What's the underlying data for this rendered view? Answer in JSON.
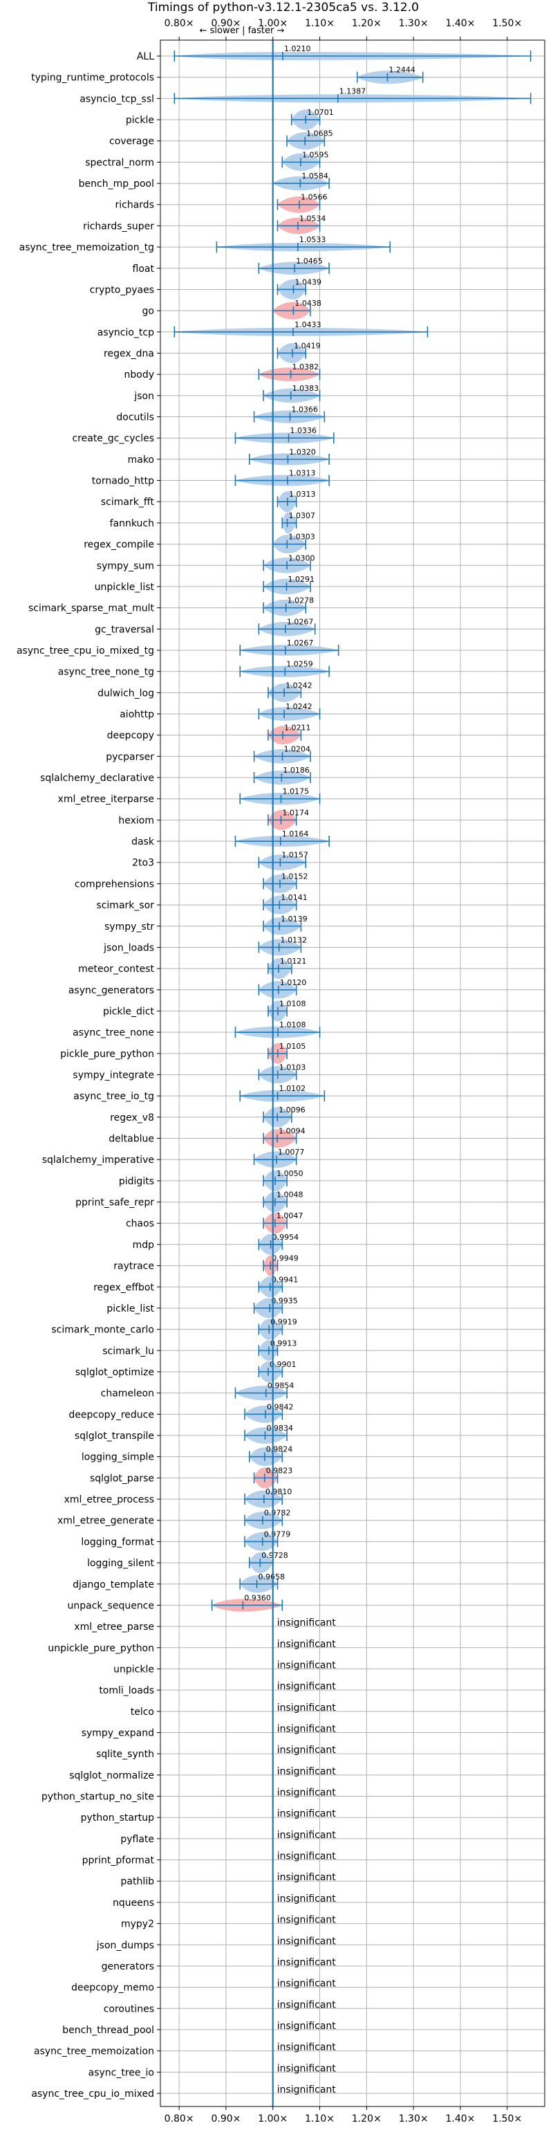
{
  "chart_data": {
    "type": "violin",
    "title": "Timings of python-v3.12.1-2305ca5 vs. 3.12.0",
    "subtitle": "← slower | faster →",
    "xlim": [
      0.76,
      1.58
    ],
    "x_ticks": [
      0.8,
      0.9,
      1.0,
      1.1,
      1.2,
      1.3,
      1.4,
      1.5
    ],
    "x_tick_labels": [
      "0.80×",
      "0.90×",
      "1.00×",
      "1.10×",
      "1.20×",
      "1.30×",
      "1.40×",
      "1.50×"
    ],
    "reference_line": 1.0,
    "grid": true,
    "colors": {
      "normal": "#a8c8e8",
      "highlight": "#f4a6a8",
      "line": "#1f77b4"
    },
    "insignificant_text": "insignificant",
    "benchmarks": [
      {
        "name": "ALL",
        "value": 1.021,
        "label": "1.0210",
        "min": 0.79,
        "max": 1.55,
        "highlight": false
      },
      {
        "name": "typing_runtime_protocols",
        "value": 1.2444,
        "label": "1.2444",
        "min": 1.18,
        "max": 1.32,
        "highlight": false
      },
      {
        "name": "asyncio_tcp_ssl",
        "value": 1.1387,
        "label": "1.1387",
        "min": 0.79,
        "max": 1.55,
        "highlight": false
      },
      {
        "name": "pickle",
        "value": 1.0701,
        "label": "1.0701",
        "min": 1.04,
        "max": 1.1,
        "highlight": false
      },
      {
        "name": "coverage",
        "value": 1.0685,
        "label": "1.0685",
        "min": 1.03,
        "max": 1.11,
        "highlight": false
      },
      {
        "name": "spectral_norm",
        "value": 1.0595,
        "label": "1.0595",
        "min": 1.02,
        "max": 1.1,
        "highlight": false
      },
      {
        "name": "bench_mp_pool",
        "value": 1.0584,
        "label": "1.0584",
        "min": 1.0,
        "max": 1.12,
        "highlight": false
      },
      {
        "name": "richards",
        "value": 1.0566,
        "label": "1.0566",
        "min": 1.01,
        "max": 1.1,
        "highlight": true
      },
      {
        "name": "richards_super",
        "value": 1.0534,
        "label": "1.0534",
        "min": 1.01,
        "max": 1.1,
        "highlight": true
      },
      {
        "name": "async_tree_memoization_tg",
        "value": 1.0533,
        "label": "1.0533",
        "min": 0.88,
        "max": 1.25,
        "highlight": false
      },
      {
        "name": "float",
        "value": 1.0465,
        "label": "1.0465",
        "min": 0.97,
        "max": 1.12,
        "highlight": false
      },
      {
        "name": "crypto_pyaes",
        "value": 1.0439,
        "label": "1.0439",
        "min": 1.01,
        "max": 1.07,
        "highlight": false
      },
      {
        "name": "go",
        "value": 1.0438,
        "label": "1.0438",
        "min": 1.0,
        "max": 1.08,
        "highlight": true
      },
      {
        "name": "asyncio_tcp",
        "value": 1.0433,
        "label": "1.0433",
        "min": 0.79,
        "max": 1.33,
        "highlight": false
      },
      {
        "name": "regex_dna",
        "value": 1.0419,
        "label": "1.0419",
        "min": 1.01,
        "max": 1.07,
        "highlight": false
      },
      {
        "name": "nbody",
        "value": 1.0382,
        "label": "1.0382",
        "min": 0.97,
        "max": 1.1,
        "highlight": true
      },
      {
        "name": "json",
        "value": 1.0383,
        "label": "1.0383",
        "min": 0.98,
        "max": 1.1,
        "highlight": false
      },
      {
        "name": "docutils",
        "value": 1.0366,
        "label": "1.0366",
        "min": 0.96,
        "max": 1.11,
        "highlight": false
      },
      {
        "name": "create_gc_cycles",
        "value": 1.0336,
        "label": "1.0336",
        "min": 0.92,
        "max": 1.13,
        "highlight": false
      },
      {
        "name": "mako",
        "value": 1.032,
        "label": "1.0320",
        "min": 0.95,
        "max": 1.12,
        "highlight": false
      },
      {
        "name": "tornado_http",
        "value": 1.0313,
        "label": "1.0313",
        "min": 0.92,
        "max": 1.12,
        "highlight": false
      },
      {
        "name": "scimark_fft",
        "value": 1.0313,
        "label": "1.0313",
        "min": 1.01,
        "max": 1.05,
        "highlight": false
      },
      {
        "name": "fannkuch",
        "value": 1.0307,
        "label": "1.0307",
        "min": 1.02,
        "max": 1.05,
        "highlight": false
      },
      {
        "name": "regex_compile",
        "value": 1.0303,
        "label": "1.0303",
        "min": 1.0,
        "max": 1.07,
        "highlight": false
      },
      {
        "name": "sympy_sum",
        "value": 1.03,
        "label": "1.0300",
        "min": 0.98,
        "max": 1.08,
        "highlight": false
      },
      {
        "name": "unpickle_list",
        "value": 1.0291,
        "label": "1.0291",
        "min": 0.98,
        "max": 1.08,
        "highlight": false
      },
      {
        "name": "scimark_sparse_mat_mult",
        "value": 1.0278,
        "label": "1.0278",
        "min": 0.98,
        "max": 1.07,
        "highlight": false
      },
      {
        "name": "gc_traversal",
        "value": 1.0267,
        "label": "1.0267",
        "min": 0.97,
        "max": 1.09,
        "highlight": false
      },
      {
        "name": "async_tree_cpu_io_mixed_tg",
        "value": 1.0267,
        "label": "1.0267",
        "min": 0.93,
        "max": 1.14,
        "highlight": false
      },
      {
        "name": "async_tree_none_tg",
        "value": 1.0259,
        "label": "1.0259",
        "min": 0.93,
        "max": 1.12,
        "highlight": false
      },
      {
        "name": "dulwich_log",
        "value": 1.0242,
        "label": "1.0242",
        "min": 0.99,
        "max": 1.06,
        "highlight": false
      },
      {
        "name": "aiohttp",
        "value": 1.0242,
        "label": "1.0242",
        "min": 0.97,
        "max": 1.1,
        "highlight": false
      },
      {
        "name": "deepcopy",
        "value": 1.0211,
        "label": "1.0211",
        "min": 0.99,
        "max": 1.06,
        "highlight": true
      },
      {
        "name": "pycparser",
        "value": 1.0204,
        "label": "1.0204",
        "min": 0.96,
        "max": 1.08,
        "highlight": false
      },
      {
        "name": "sqlalchemy_declarative",
        "value": 1.0186,
        "label": "1.0186",
        "min": 0.96,
        "max": 1.08,
        "highlight": false
      },
      {
        "name": "xml_etree_iterparse",
        "value": 1.0175,
        "label": "1.0175",
        "min": 0.93,
        "max": 1.1,
        "highlight": false
      },
      {
        "name": "hexiom",
        "value": 1.0174,
        "label": "1.0174",
        "min": 0.99,
        "max": 1.05,
        "highlight": true
      },
      {
        "name": "dask",
        "value": 1.0164,
        "label": "1.0164",
        "min": 0.92,
        "max": 1.12,
        "highlight": false
      },
      {
        "name": "2to3",
        "value": 1.0157,
        "label": "1.0157",
        "min": 0.97,
        "max": 1.07,
        "highlight": false
      },
      {
        "name": "comprehensions",
        "value": 1.0152,
        "label": "1.0152",
        "min": 0.98,
        "max": 1.05,
        "highlight": false
      },
      {
        "name": "scimark_sor",
        "value": 1.0141,
        "label": "1.0141",
        "min": 0.98,
        "max": 1.05,
        "highlight": false
      },
      {
        "name": "sympy_str",
        "value": 1.0139,
        "label": "1.0139",
        "min": 0.98,
        "max": 1.06,
        "highlight": false
      },
      {
        "name": "json_loads",
        "value": 1.0132,
        "label": "1.0132",
        "min": 0.97,
        "max": 1.06,
        "highlight": false
      },
      {
        "name": "meteor_contest",
        "value": 1.0121,
        "label": "1.0121",
        "min": 0.99,
        "max": 1.04,
        "highlight": false
      },
      {
        "name": "async_generators",
        "value": 1.012,
        "label": "1.0120",
        "min": 0.97,
        "max": 1.05,
        "highlight": false
      },
      {
        "name": "pickle_dict",
        "value": 1.0108,
        "label": "1.0108",
        "min": 0.99,
        "max": 1.03,
        "highlight": false
      },
      {
        "name": "async_tree_none",
        "value": 1.0108,
        "label": "1.0108",
        "min": 0.92,
        "max": 1.1,
        "highlight": false
      },
      {
        "name": "pickle_pure_python",
        "value": 1.0105,
        "label": "1.0105",
        "min": 0.99,
        "max": 1.03,
        "highlight": true
      },
      {
        "name": "sympy_integrate",
        "value": 1.0103,
        "label": "1.0103",
        "min": 0.97,
        "max": 1.05,
        "highlight": false
      },
      {
        "name": "async_tree_io_tg",
        "value": 1.0102,
        "label": "1.0102",
        "min": 0.93,
        "max": 1.11,
        "highlight": false
      },
      {
        "name": "regex_v8",
        "value": 1.0096,
        "label": "1.0096",
        "min": 0.98,
        "max": 1.04,
        "highlight": false
      },
      {
        "name": "deltablue",
        "value": 1.0094,
        "label": "1.0094",
        "min": 0.98,
        "max": 1.05,
        "highlight": true
      },
      {
        "name": "sqlalchemy_imperative",
        "value": 1.0077,
        "label": "1.0077",
        "min": 0.96,
        "max": 1.05,
        "highlight": false
      },
      {
        "name": "pidigits",
        "value": 1.005,
        "label": "1.0050",
        "min": 0.98,
        "max": 1.03,
        "highlight": false
      },
      {
        "name": "pprint_safe_repr",
        "value": 1.0048,
        "label": "1.0048",
        "min": 0.98,
        "max": 1.03,
        "highlight": false
      },
      {
        "name": "chaos",
        "value": 1.0047,
        "label": "1.0047",
        "min": 0.98,
        "max": 1.03,
        "highlight": true
      },
      {
        "name": "mdp",
        "value": 0.9954,
        "label": "0.9954",
        "min": 0.97,
        "max": 1.02,
        "highlight": false
      },
      {
        "name": "raytrace",
        "value": 0.9949,
        "label": "0.9949",
        "min": 0.98,
        "max": 1.01,
        "highlight": true
      },
      {
        "name": "regex_effbot",
        "value": 0.9941,
        "label": "0.9941",
        "min": 0.97,
        "max": 1.02,
        "highlight": false
      },
      {
        "name": "pickle_list",
        "value": 0.9935,
        "label": "0.9935",
        "min": 0.96,
        "max": 1.02,
        "highlight": false
      },
      {
        "name": "scimark_monte_carlo",
        "value": 0.9919,
        "label": "0.9919",
        "min": 0.97,
        "max": 1.02,
        "highlight": false
      },
      {
        "name": "scimark_lu",
        "value": 0.9913,
        "label": "0.9913",
        "min": 0.97,
        "max": 1.01,
        "highlight": false
      },
      {
        "name": "sqlglot_optimize",
        "value": 0.9901,
        "label": "0.9901",
        "min": 0.97,
        "max": 1.02,
        "highlight": false
      },
      {
        "name": "chameleon",
        "value": 0.9854,
        "label": "0.9854",
        "min": 0.92,
        "max": 1.03,
        "highlight": false
      },
      {
        "name": "deepcopy_reduce",
        "value": 0.9842,
        "label": "0.9842",
        "min": 0.94,
        "max": 1.02,
        "highlight": false
      },
      {
        "name": "sqlglot_transpile",
        "value": 0.9834,
        "label": "0.9834",
        "min": 0.94,
        "max": 1.03,
        "highlight": false
      },
      {
        "name": "logging_simple",
        "value": 0.9824,
        "label": "0.9824",
        "min": 0.95,
        "max": 1.02,
        "highlight": false
      },
      {
        "name": "sqlglot_parse",
        "value": 0.9823,
        "label": "0.9823",
        "min": 0.96,
        "max": 1.01,
        "highlight": true
      },
      {
        "name": "xml_etree_process",
        "value": 0.981,
        "label": "0.9810",
        "min": 0.94,
        "max": 1.02,
        "highlight": false
      },
      {
        "name": "xml_etree_generate",
        "value": 0.9782,
        "label": "0.9782",
        "min": 0.94,
        "max": 1.02,
        "highlight": false
      },
      {
        "name": "logging_format",
        "value": 0.9779,
        "label": "0.9779",
        "min": 0.94,
        "max": 1.01,
        "highlight": false
      },
      {
        "name": "logging_silent",
        "value": 0.9728,
        "label": "0.9728",
        "min": 0.95,
        "max": 1.0,
        "highlight": false
      },
      {
        "name": "django_template",
        "value": 0.9658,
        "label": "0.9658",
        "min": 0.93,
        "max": 1.01,
        "highlight": false
      },
      {
        "name": "unpack_sequence",
        "value": 0.936,
        "label": "0.9360",
        "min": 0.87,
        "max": 1.02,
        "highlight": true
      },
      {
        "name": "xml_etree_parse",
        "insignificant": true
      },
      {
        "name": "unpickle_pure_python",
        "insignificant": true
      },
      {
        "name": "unpickle",
        "insignificant": true
      },
      {
        "name": "tomli_loads",
        "insignificant": true
      },
      {
        "name": "telco",
        "insignificant": true
      },
      {
        "name": "sympy_expand",
        "insignificant": true
      },
      {
        "name": "sqlite_synth",
        "insignificant": true
      },
      {
        "name": "sqlglot_normalize",
        "insignificant": true
      },
      {
        "name": "python_startup_no_site",
        "insignificant": true
      },
      {
        "name": "python_startup",
        "insignificant": true
      },
      {
        "name": "pyflate",
        "insignificant": true
      },
      {
        "name": "pprint_pformat",
        "insignificant": true
      },
      {
        "name": "pathlib",
        "insignificant": true
      },
      {
        "name": "nqueens",
        "insignificant": true
      },
      {
        "name": "mypy2",
        "insignificant": true
      },
      {
        "name": "json_dumps",
        "insignificant": true
      },
      {
        "name": "generators",
        "insignificant": true
      },
      {
        "name": "deepcopy_memo",
        "insignificant": true
      },
      {
        "name": "coroutines",
        "insignificant": true
      },
      {
        "name": "bench_thread_pool",
        "insignificant": true
      },
      {
        "name": "async_tree_memoization",
        "insignificant": true
      },
      {
        "name": "async_tree_io",
        "insignificant": true
      },
      {
        "name": "async_tree_cpu_io_mixed",
        "insignificant": true
      }
    ]
  }
}
